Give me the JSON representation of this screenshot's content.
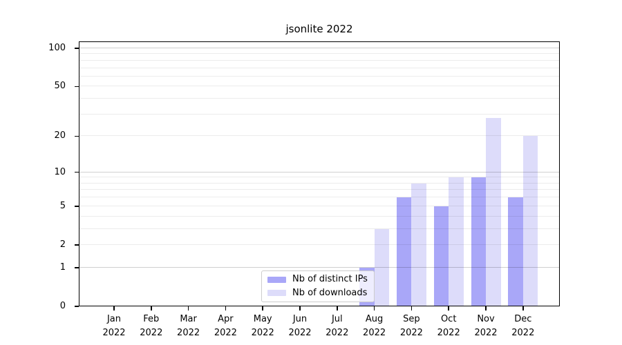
{
  "title": "jsonlite 2022",
  "colors": {
    "distinct_ips_bar": "#a9a7f8",
    "downloads_bar": "#dddcfa",
    "grid_minor": "rgba(0,0,0,0.075)",
    "grid_major": "rgba(0,0,0,0.19)",
    "axis": "#000000",
    "legend_border": "#cccccc"
  },
  "legend": {
    "items": [
      {
        "label": "Nb of distinct IPs",
        "color_key": "distinct_ips_bar"
      },
      {
        "label": "Nb of downloads",
        "color_key": "downloads_bar"
      }
    ]
  },
  "chart_data": {
    "type": "bar",
    "title": "jsonlite 2022",
    "categories": [
      "Jan 2022",
      "Feb 2022",
      "Mar 2022",
      "Apr 2022",
      "May 2022",
      "Jun 2022",
      "Jul 2022",
      "Aug 2022",
      "Sep 2022",
      "Oct 2022",
      "Nov 2022",
      "Dec 2022"
    ],
    "x_tick_month_line": [
      "Jan",
      "Feb",
      "Mar",
      "Apr",
      "May",
      "Jun",
      "Jul",
      "Aug",
      "Sep",
      "Oct",
      "Nov",
      "Dec"
    ],
    "x_tick_year_line": "2022",
    "series": [
      {
        "name": "Nb of distinct IPs",
        "values": [
          0,
          0,
          0,
          0,
          0,
          0,
          0,
          1,
          6,
          5,
          9,
          6
        ]
      },
      {
        "name": "Nb of downloads",
        "values": [
          0,
          0,
          0,
          0,
          0,
          0,
          0,
          3,
          8,
          9,
          28,
          20
        ]
      }
    ],
    "yscale": "log1p",
    "ylim": [
      0,
      113
    ],
    "ytick_labels": [
      0,
      1,
      2,
      5,
      10,
      20,
      50,
      100
    ],
    "grid_minor_values": [
      2,
      3,
      4,
      5,
      6,
      7,
      8,
      9,
      20,
      30,
      40,
      50,
      60,
      70,
      80,
      90
    ],
    "grid_major_values": [
      1,
      10,
      100
    ],
    "grid": true,
    "legend_position": "lower center",
    "xlabel": "",
    "ylabel": ""
  }
}
